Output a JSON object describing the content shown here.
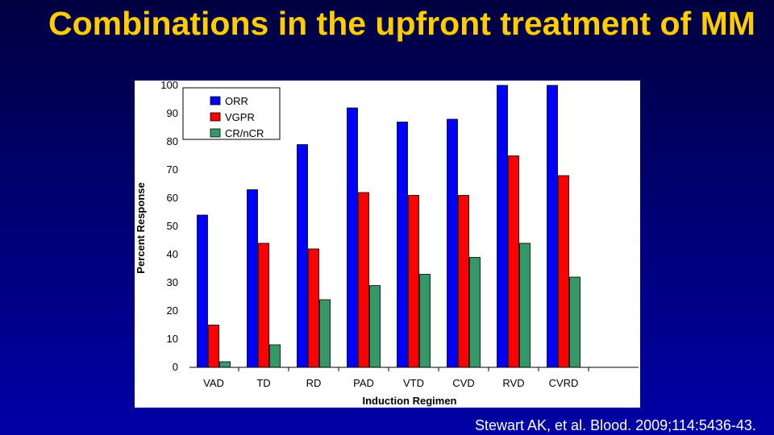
{
  "slide": {
    "title": "Combinations in the upfront treatment of MM",
    "citation": "Stewart AK, et al. Blood. 2009;114:5436-43."
  },
  "chart_data": {
    "type": "bar",
    "categories": [
      "VAD",
      "TD",
      "RD",
      "PAD",
      "VTD",
      "CVD",
      "RVD",
      "CVRD"
    ],
    "series": [
      {
        "name": "ORR",
        "color": "#0000ff",
        "values": [
          54,
          63,
          79,
          92,
          87,
          88,
          100,
          100
        ]
      },
      {
        "name": "VGPR",
        "color": "#ff0000",
        "values": [
          15,
          44,
          42,
          62,
          61,
          61,
          75,
          68
        ]
      },
      {
        "name": "CR/nCR",
        "color": "#339966",
        "values": [
          2,
          8,
          24,
          29,
          33,
          39,
          44,
          32
        ]
      }
    ],
    "xlabel": "Induction Regimen",
    "ylabel": "Percent Response",
    "ylim": [
      0,
      100
    ],
    "yticks": [
      0,
      10,
      20,
      30,
      40,
      50,
      60,
      70,
      80,
      90,
      100
    ],
    "grid": false,
    "legend_position": "top-left"
  }
}
